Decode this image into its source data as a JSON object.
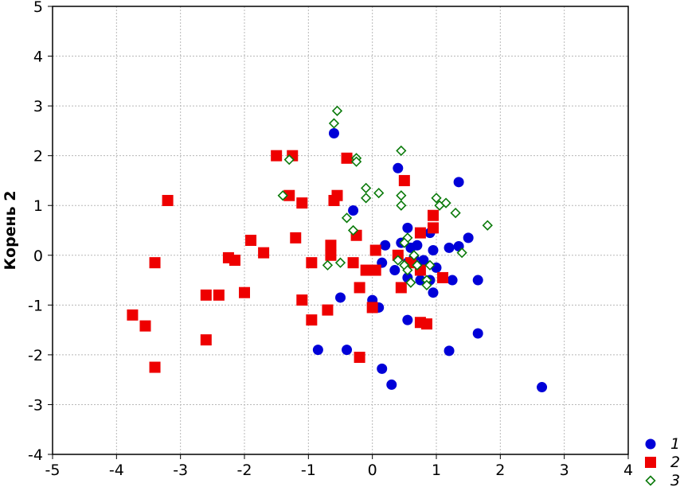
{
  "chart_data": {
    "type": "scatter",
    "title": "",
    "xlabel": "",
    "ylabel": "Корень 2",
    "xlim": [
      -5,
      4
    ],
    "ylim": [
      -4,
      5
    ],
    "xticks": [
      "-5",
      "-4",
      "-3",
      "-2",
      "-1",
      "0",
      "1",
      "2",
      "3",
      "4"
    ],
    "yticks": [
      "-4",
      "-3",
      "-2",
      "-1",
      "0",
      "1",
      "2",
      "3",
      "4",
      "5"
    ],
    "grid": true,
    "legend": "bottom-right",
    "series": [
      {
        "name": "1",
        "marker": "circle",
        "color": "#0000d8",
        "points": [
          [
            -0.6,
            2.45
          ],
          [
            0.4,
            1.75
          ],
          [
            1.35,
            1.47
          ],
          [
            -0.3,
            0.9
          ],
          [
            0.55,
            0.55
          ],
          [
            0.9,
            0.45
          ],
          [
            0.2,
            0.2
          ],
          [
            0.45,
            0.25
          ],
          [
            0.6,
            0.15
          ],
          [
            0.7,
            0.2
          ],
          [
            0.95,
            0.1
          ],
          [
            1.2,
            0.15
          ],
          [
            1.35,
            0.18
          ],
          [
            1.5,
            0.35
          ],
          [
            0.15,
            -0.15
          ],
          [
            0.35,
            -0.3
          ],
          [
            0.55,
            -0.15
          ],
          [
            0.65,
            -0.05
          ],
          [
            0.8,
            -0.1
          ],
          [
            1.0,
            -0.25
          ],
          [
            1.25,
            -0.5
          ],
          [
            0.55,
            -0.45
          ],
          [
            0.75,
            -0.5
          ],
          [
            0.9,
            -0.5
          ],
          [
            0.95,
            -0.75
          ],
          [
            1.65,
            -0.5
          ],
          [
            -0.5,
            -0.85
          ],
          [
            0.0,
            -0.9
          ],
          [
            0.1,
            -1.05
          ],
          [
            0.55,
            -1.3
          ],
          [
            1.65,
            -1.57
          ],
          [
            -0.85,
            -1.9
          ],
          [
            -0.4,
            -1.9
          ],
          [
            1.2,
            -1.92
          ],
          [
            0.15,
            -2.28
          ],
          [
            0.3,
            -2.6
          ],
          [
            2.65,
            -2.65
          ]
        ]
      },
      {
        "name": "2",
        "marker": "square",
        "color": "#ee0000",
        "points": [
          [
            -1.5,
            2.0
          ],
          [
            -1.25,
            2.0
          ],
          [
            -0.4,
            1.95
          ],
          [
            0.5,
            1.5
          ],
          [
            -1.3,
            1.2
          ],
          [
            -0.55,
            1.2
          ],
          [
            -0.6,
            1.1
          ],
          [
            -1.1,
            1.05
          ],
          [
            -3.2,
            1.1
          ],
          [
            0.95,
            0.8
          ],
          [
            0.95,
            0.55
          ],
          [
            0.75,
            0.45
          ],
          [
            -1.9,
            0.3
          ],
          [
            -1.2,
            0.35
          ],
          [
            -0.25,
            0.4
          ],
          [
            -0.65,
            0.2
          ],
          [
            -0.65,
            0.0
          ],
          [
            0.05,
            0.1
          ],
          [
            -1.7,
            0.05
          ],
          [
            -2.25,
            -0.05
          ],
          [
            -2.15,
            -0.1
          ],
          [
            -3.4,
            -0.15
          ],
          [
            -0.95,
            -0.15
          ],
          [
            -0.3,
            -0.15
          ],
          [
            0.4,
            0.0
          ],
          [
            0.6,
            -0.15
          ],
          [
            0.75,
            -0.3
          ],
          [
            -0.1,
            -0.3
          ],
          [
            0.05,
            -0.3
          ],
          [
            1.1,
            -0.45
          ],
          [
            -0.2,
            -0.65
          ],
          [
            0.45,
            -0.65
          ],
          [
            -2.0,
            -0.75
          ],
          [
            -2.6,
            -0.8
          ],
          [
            -2.4,
            -0.8
          ],
          [
            -1.1,
            -0.9
          ],
          [
            -0.7,
            -1.1
          ],
          [
            0.0,
            -1.05
          ],
          [
            -3.75,
            -1.2
          ],
          [
            -0.95,
            -1.3
          ],
          [
            0.75,
            -1.35
          ],
          [
            0.85,
            -1.38
          ],
          [
            -3.55,
            -1.42
          ],
          [
            -2.6,
            -1.7
          ],
          [
            -0.2,
            -2.05
          ],
          [
            -3.4,
            -2.25
          ]
        ]
      },
      {
        "name": "3",
        "marker": "diamond",
        "color": "#0a7a0a",
        "points": [
          [
            -0.55,
            2.9
          ],
          [
            -0.6,
            2.65
          ],
          [
            0.45,
            2.1
          ],
          [
            -0.25,
            1.95
          ],
          [
            -0.25,
            1.88
          ],
          [
            -1.3,
            1.92
          ],
          [
            -0.1,
            1.35
          ],
          [
            0.1,
            1.25
          ],
          [
            -1.4,
            1.2
          ],
          [
            -0.1,
            1.15
          ],
          [
            0.45,
            1.2
          ],
          [
            0.45,
            1.0
          ],
          [
            1.0,
            1.15
          ],
          [
            1.05,
            1.0
          ],
          [
            1.15,
            1.05
          ],
          [
            1.3,
            0.85
          ],
          [
            -0.4,
            0.75
          ],
          [
            1.8,
            0.6
          ],
          [
            -0.3,
            0.5
          ],
          [
            0.55,
            0.35
          ],
          [
            0.5,
            0.25
          ],
          [
            1.4,
            0.05
          ],
          [
            0.65,
            0.0
          ],
          [
            -0.7,
            -0.2
          ],
          [
            -0.5,
            -0.15
          ],
          [
            0.4,
            -0.1
          ],
          [
            0.5,
            -0.2
          ],
          [
            0.55,
            -0.3
          ],
          [
            0.7,
            -0.2
          ],
          [
            0.9,
            -0.2
          ],
          [
            0.6,
            -0.55
          ],
          [
            0.85,
            -0.5
          ],
          [
            0.85,
            -0.6
          ]
        ]
      }
    ]
  }
}
